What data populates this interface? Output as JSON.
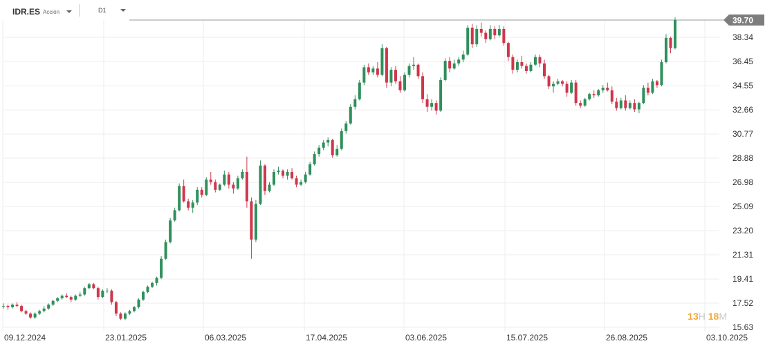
{
  "toolbar": {
    "symbol": "IDR.ES",
    "instrument_type": "Acción",
    "timeframe": "D1"
  },
  "countdown": {
    "hours": "13",
    "hours_unit": "H",
    "minutes": "18",
    "minutes_unit": "M"
  },
  "colors": {
    "up": "#2f8f5b",
    "down": "#d0364b",
    "price_tag": "#7d7d7d",
    "grid": "#eeeeee"
  },
  "chart_data": {
    "type": "candlestick",
    "title": "",
    "last_price": "39.70",
    "y_axis": {
      "ticks": [
        "39.70",
        "38.34",
        "36.45",
        "34.55",
        "32.66",
        "30.77",
        "28.88",
        "26.98",
        "25.09",
        "23.20",
        "21.31",
        "19.41",
        "17.52",
        "15.63"
      ],
      "range": [
        15.63,
        39.7
      ]
    },
    "x_axis": {
      "ticks": [
        "09.12.2024",
        "23.01.2025",
        "06.03.2025",
        "17.04.2025",
        "03.06.2025",
        "15.07.2025",
        "26.08.2025",
        "03.10.2025"
      ]
    },
    "candles": [
      [
        17.3,
        17.5,
        17.1,
        17.3
      ],
      [
        17.3,
        17.4,
        17.0,
        17.2
      ],
      [
        17.2,
        17.5,
        17.1,
        17.4
      ],
      [
        17.4,
        17.6,
        17.2,
        17.3
      ],
      [
        17.3,
        17.4,
        16.8,
        16.9
      ],
      [
        16.9,
        17.0,
        16.6,
        16.7
      ],
      [
        16.7,
        16.8,
        16.3,
        16.4
      ],
      [
        16.4,
        16.8,
        16.3,
        16.7
      ],
      [
        16.7,
        17.0,
        16.6,
        16.9
      ],
      [
        16.9,
        17.3,
        16.8,
        17.1
      ],
      [
        17.1,
        17.5,
        17.0,
        17.4
      ],
      [
        17.4,
        17.8,
        17.3,
        17.7
      ],
      [
        17.7,
        18.0,
        17.6,
        17.9
      ],
      [
        17.9,
        18.2,
        17.8,
        18.1
      ],
      [
        18.1,
        18.3,
        17.9,
        18.0
      ],
      [
        18.0,
        18.1,
        17.6,
        17.8
      ],
      [
        17.8,
        18.2,
        17.7,
        18.1
      ],
      [
        18.1,
        18.4,
        18.0,
        18.2
      ],
      [
        18.2,
        18.8,
        18.1,
        18.7
      ],
      [
        18.7,
        19.1,
        18.6,
        19.0
      ],
      [
        19.0,
        19.1,
        18.6,
        18.7
      ],
      [
        18.7,
        18.8,
        17.8,
        18.0
      ],
      [
        18.0,
        18.6,
        17.9,
        18.5
      ],
      [
        18.5,
        18.7,
        18.3,
        18.5
      ],
      [
        18.5,
        18.6,
        17.4,
        17.6
      ],
      [
        17.6,
        17.7,
        16.5,
        16.7
      ],
      [
        16.7,
        16.8,
        16.2,
        16.3
      ],
      [
        16.3,
        16.8,
        16.2,
        16.7
      ],
      [
        16.7,
        17.0,
        16.6,
        16.9
      ],
      [
        16.9,
        17.3,
        16.8,
        17.2
      ],
      [
        17.2,
        17.9,
        17.1,
        17.8
      ],
      [
        17.8,
        18.5,
        17.7,
        18.4
      ],
      [
        18.4,
        18.9,
        18.3,
        18.8
      ],
      [
        18.8,
        19.2,
        18.7,
        19.1
      ],
      [
        19.1,
        19.6,
        18.9,
        19.5
      ],
      [
        19.5,
        21.2,
        19.4,
        21.0
      ],
      [
        21.0,
        22.5,
        20.9,
        22.3
      ],
      [
        22.3,
        24.2,
        22.2,
        24.0
      ],
      [
        24.0,
        25.0,
        23.9,
        24.8
      ],
      [
        24.8,
        26.9,
        24.7,
        26.7
      ],
      [
        26.7,
        27.2,
        25.4,
        25.5
      ],
      [
        25.5,
        25.7,
        24.8,
        25.0
      ],
      [
        25.0,
        25.6,
        24.6,
        25.4
      ],
      [
        25.4,
        26.6,
        25.2,
        26.4
      ],
      [
        26.4,
        26.6,
        25.8,
        26.0
      ],
      [
        26.0,
        27.4,
        25.9,
        27.2
      ],
      [
        27.2,
        27.8,
        26.8,
        27.0
      ],
      [
        27.0,
        27.2,
        26.2,
        26.4
      ],
      [
        26.4,
        26.9,
        26.3,
        26.8
      ],
      [
        26.8,
        27.9,
        26.7,
        27.6
      ],
      [
        27.6,
        27.8,
        26.5,
        26.8
      ],
      [
        26.8,
        27.0,
        26.1,
        26.5
      ],
      [
        26.5,
        27.5,
        26.4,
        27.3
      ],
      [
        27.3,
        28.0,
        27.2,
        27.8
      ],
      [
        27.8,
        29.0,
        25.0,
        25.5
      ],
      [
        25.5,
        25.8,
        21.0,
        22.5
      ],
      [
        22.5,
        25.6,
        22.3,
        25.3
      ],
      [
        25.3,
        28.7,
        25.2,
        28.3
      ],
      [
        28.3,
        28.4,
        26.0,
        26.3
      ],
      [
        26.3,
        27.0,
        26.2,
        26.8
      ],
      [
        26.8,
        28.0,
        26.7,
        27.8
      ],
      [
        27.8,
        28.2,
        27.6,
        27.9
      ],
      [
        27.9,
        28.0,
        27.3,
        27.5
      ],
      [
        27.5,
        28.0,
        27.2,
        27.8
      ],
      [
        27.8,
        28.1,
        27.2,
        27.3
      ],
      [
        27.3,
        27.5,
        26.6,
        26.8
      ],
      [
        26.8,
        27.2,
        26.7,
        27.0
      ],
      [
        27.0,
        27.8,
        26.9,
        27.6
      ],
      [
        27.6,
        28.6,
        27.5,
        28.4
      ],
      [
        28.4,
        29.4,
        28.3,
        29.2
      ],
      [
        29.2,
        29.9,
        29.0,
        29.7
      ],
      [
        29.7,
        30.3,
        29.5,
        30.1
      ],
      [
        30.1,
        30.5,
        29.8,
        30.3
      ],
      [
        30.3,
        30.4,
        28.9,
        29.1
      ],
      [
        29.1,
        29.9,
        29.0,
        29.6
      ],
      [
        29.6,
        31.2,
        29.5,
        31.0
      ],
      [
        31.0,
        31.8,
        30.8,
        31.6
      ],
      [
        31.6,
        33.1,
        31.5,
        32.9
      ],
      [
        32.9,
        33.8,
        32.7,
        33.5
      ],
      [
        33.5,
        35.0,
        33.4,
        34.8
      ],
      [
        34.8,
        36.2,
        34.6,
        36.0
      ],
      [
        36.0,
        36.3,
        35.4,
        35.6
      ],
      [
        35.6,
        36.1,
        35.4,
        35.9
      ],
      [
        35.9,
        36.4,
        35.2,
        35.4
      ],
      [
        35.4,
        37.8,
        35.3,
        37.5
      ],
      [
        37.5,
        37.6,
        34.4,
        34.8
      ],
      [
        34.8,
        36.0,
        34.5,
        35.8
      ],
      [
        35.8,
        36.1,
        34.7,
        34.9
      ],
      [
        34.9,
        35.3,
        34.0,
        34.2
      ],
      [
        34.2,
        35.6,
        34.1,
        35.4
      ],
      [
        35.4,
        36.3,
        35.2,
        36.1
      ],
      [
        36.1,
        36.8,
        35.8,
        36.2
      ],
      [
        36.2,
        36.3,
        35.1,
        35.3
      ],
      [
        35.3,
        35.6,
        33.2,
        33.5
      ],
      [
        33.5,
        33.9,
        32.5,
        32.9
      ],
      [
        32.9,
        33.5,
        32.6,
        33.2
      ],
      [
        33.2,
        33.4,
        32.3,
        32.6
      ],
      [
        32.6,
        35.2,
        32.5,
        35.0
      ],
      [
        35.0,
        36.7,
        34.9,
        36.5
      ],
      [
        36.5,
        36.8,
        35.6,
        35.9
      ],
      [
        35.9,
        36.6,
        35.8,
        36.3
      ],
      [
        36.3,
        36.8,
        36.1,
        36.6
      ],
      [
        36.6,
        37.3,
        36.4,
        37.0
      ],
      [
        37.0,
        39.3,
        36.9,
        39.1
      ],
      [
        39.1,
        39.4,
        37.5,
        37.8
      ],
      [
        37.8,
        39.3,
        37.6,
        39.0
      ],
      [
        39.0,
        39.5,
        38.4,
        38.7
      ],
      [
        38.7,
        38.9,
        37.9,
        38.2
      ],
      [
        38.2,
        39.3,
        38.1,
        39.0
      ],
      [
        39.0,
        39.2,
        38.2,
        38.5
      ],
      [
        38.5,
        39.3,
        38.4,
        39.0
      ],
      [
        39.0,
        39.2,
        37.7,
        37.9
      ],
      [
        37.9,
        38.0,
        36.5,
        36.8
      ],
      [
        36.8,
        37.0,
        35.5,
        35.8
      ],
      [
        35.8,
        36.6,
        35.6,
        36.4
      ],
      [
        36.4,
        36.9,
        35.9,
        36.1
      ],
      [
        36.1,
        36.3,
        35.5,
        35.7
      ],
      [
        35.7,
        36.4,
        35.6,
        36.2
      ],
      [
        36.2,
        37.0,
        36.1,
        36.8
      ],
      [
        36.8,
        37.0,
        36.0,
        36.3
      ],
      [
        36.3,
        36.6,
        35.1,
        35.3
      ],
      [
        35.3,
        35.4,
        34.3,
        34.5
      ],
      [
        34.5,
        34.9,
        34.0,
        34.7
      ],
      [
        34.7,
        35.1,
        34.6,
        34.9
      ],
      [
        34.9,
        35.0,
        34.5,
        34.7
      ],
      [
        34.7,
        34.9,
        33.7,
        34.0
      ],
      [
        34.0,
        35.0,
        33.9,
        34.8
      ],
      [
        34.8,
        35.0,
        33.0,
        33.2
      ],
      [
        33.2,
        33.4,
        32.8,
        33.0
      ],
      [
        33.0,
        33.6,
        32.9,
        33.5
      ],
      [
        33.5,
        34.0,
        33.4,
        33.9
      ],
      [
        33.9,
        34.2,
        33.6,
        33.8
      ],
      [
        33.8,
        34.3,
        33.7,
        34.2
      ],
      [
        34.2,
        34.6,
        34.0,
        34.4
      ],
      [
        34.4,
        34.8,
        34.1,
        34.2
      ],
      [
        34.2,
        34.5,
        33.1,
        33.3
      ],
      [
        33.3,
        33.6,
        32.6,
        32.8
      ],
      [
        32.8,
        33.6,
        32.7,
        33.4
      ],
      [
        33.4,
        33.8,
        32.6,
        32.8
      ],
      [
        32.8,
        33.4,
        32.7,
        33.2
      ],
      [
        33.2,
        33.5,
        32.5,
        32.7
      ],
      [
        32.7,
        33.3,
        32.4,
        33.2
      ],
      [
        33.2,
        34.6,
        33.1,
        34.4
      ],
      [
        34.4,
        34.8,
        33.8,
        34.0
      ],
      [
        34.0,
        35.1,
        33.9,
        34.9
      ],
      [
        34.9,
        35.0,
        34.4,
        34.6
      ],
      [
        34.6,
        36.6,
        34.5,
        36.4
      ],
      [
        36.4,
        38.6,
        36.3,
        38.3
      ],
      [
        38.3,
        38.4,
        37.1,
        37.5
      ],
      [
        37.5,
        39.9,
        37.4,
        39.7
      ]
    ]
  }
}
